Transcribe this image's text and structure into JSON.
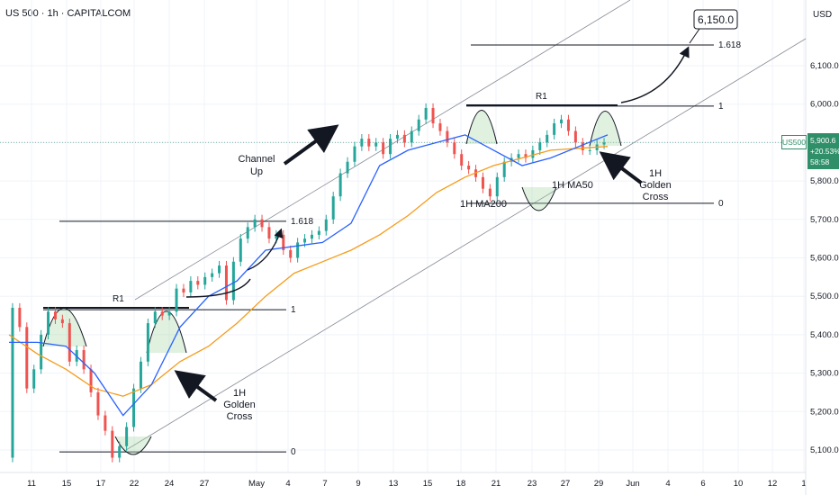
{
  "header": {
    "symbol": "US 500",
    "interval": "1h",
    "source": "CAPITALCOM",
    "title": "US 500 · 1h · CAPITALCOM"
  },
  "currency": "USD",
  "last_price": {
    "symbol": "US500",
    "price": "5,900.6",
    "change": "+20.53%",
    "countdown": "58:58"
  },
  "colors": {
    "candle_up": "#26a69a",
    "candle_down": "#ef5350",
    "ma50": "#2962ff",
    "ma200": "#f59c1a",
    "highlight": "#2f8f69"
  },
  "chart_data": {
    "type": "line",
    "title": "US 500 · 1h · CAPITALCOM",
    "ylabel": "USD",
    "ylim": [
      5050,
      6250
    ],
    "y_ticks": [
      "6,100.0",
      "6,000.0",
      "5,900.0",
      "5,800.0",
      "5,700.0",
      "5,600.0",
      "5,500.0",
      "5,400.0",
      "5,300.0",
      "5,200.0",
      "5,100.0"
    ],
    "x_ticks": [
      "11",
      "15",
      "17",
      "22",
      "24",
      "27",
      "May",
      "4",
      "7",
      "9",
      "13",
      "15",
      "18",
      "21",
      "23",
      "27",
      "29",
      "Jun",
      "4",
      "6",
      "10",
      "12",
      "1"
    ],
    "series": [
      {
        "name": "Price",
        "x": [
          0,
          2,
          4,
          6,
          8,
          10,
          12,
          14,
          16,
          18,
          20,
          22,
          24,
          26,
          28,
          30,
          32,
          34,
          36,
          38,
          40,
          42,
          44,
          46,
          48,
          50,
          52,
          54,
          56,
          58,
          60,
          62,
          64,
          66,
          68,
          70,
          72,
          74,
          76,
          78,
          80,
          82,
          84,
          86,
          88,
          90,
          92,
          94,
          96,
          98,
          100,
          102,
          104,
          106,
          108,
          110,
          112,
          114,
          116,
          118,
          120,
          122,
          124,
          126,
          128,
          130,
          132,
          134,
          136,
          138,
          140,
          142,
          144,
          146,
          148,
          150,
          152,
          154,
          156,
          158,
          160,
          162,
          164,
          166,
          168
        ],
        "values": [
          5080,
          5470,
          5420,
          5260,
          5310,
          5400,
          5460,
          5440,
          5430,
          5330,
          5360,
          5310,
          5250,
          5190,
          5150,
          5080,
          5110,
          5160,
          5260,
          5330,
          5430,
          5460,
          5450,
          5460,
          5520,
          5510,
          5540,
          5530,
          5550,
          5560,
          5580,
          5490,
          5590,
          5650,
          5680,
          5700,
          5680,
          5650,
          5660,
          5620,
          5600,
          5640,
          5650,
          5660,
          5670,
          5700,
          5760,
          5820,
          5850,
          5890,
          5910,
          5890,
          5900,
          5870,
          5910,
          5920,
          5900,
          5930,
          5960,
          5990,
          5950,
          5930,
          5900,
          5870,
          5840,
          5830,
          5810,
          5780,
          5760,
          5810,
          5850,
          5860,
          5870,
          5860,
          5880,
          5900,
          5920,
          5950,
          5960,
          5930,
          5900,
          5880,
          5880,
          5895,
          5900
        ]
      },
      {
        "name": "1H MA50",
        "x": [
          0,
          8,
          16,
          24,
          32,
          40,
          48,
          56,
          64,
          72,
          80,
          88,
          96,
          104,
          112,
          120,
          128,
          136,
          144,
          152,
          160,
          168
        ],
        "values": [
          5380,
          5380,
          5370,
          5300,
          5190,
          5270,
          5420,
          5500,
          5540,
          5620,
          5630,
          5640,
          5690,
          5840,
          5880,
          5900,
          5920,
          5880,
          5840,
          5860,
          5890,
          5920
        ]
      },
      {
        "name": "1H MA200",
        "x": [
          0,
          8,
          16,
          24,
          32,
          40,
          48,
          56,
          64,
          72,
          80,
          88,
          96,
          104,
          112,
          120,
          128,
          136,
          144,
          152,
          160,
          168
        ],
        "values": [
          5400,
          5350,
          5310,
          5260,
          5240,
          5270,
          5330,
          5370,
          5430,
          5500,
          5560,
          5590,
          5620,
          5660,
          5710,
          5770,
          5810,
          5840,
          5860,
          5880,
          5885,
          5890
        ]
      }
    ],
    "levels": [
      {
        "label": "R1",
        "value": 5470
      },
      {
        "label": "1",
        "value": 5465
      },
      {
        "label": "1.618",
        "value": 5695
      },
      {
        "label": "0",
        "value": 5095
      },
      {
        "label": "R1",
        "value": 5997
      },
      {
        "label": "1",
        "value": 5995
      },
      {
        "label": "1.618",
        "value": 6154
      },
      {
        "label": "0",
        "value": 5742
      }
    ],
    "annotations": [
      "Channel Up",
      "1H Golden Cross",
      "1H Golden Cross",
      "1H MA50",
      "1H MA200",
      "6,150.0"
    ],
    "grid": true,
    "legend": "none"
  },
  "labels": {
    "channel": [
      "Channel",
      "Up"
    ],
    "golden_cross": [
      "1H",
      "Golden",
      "Cross"
    ],
    "ma50": "1H MA50",
    "ma200": "1H MA200",
    "target": "6,150.0",
    "r1": "R1",
    "fib_1": "1",
    "fib_1618": "1.618",
    "fib_0": "0"
  }
}
